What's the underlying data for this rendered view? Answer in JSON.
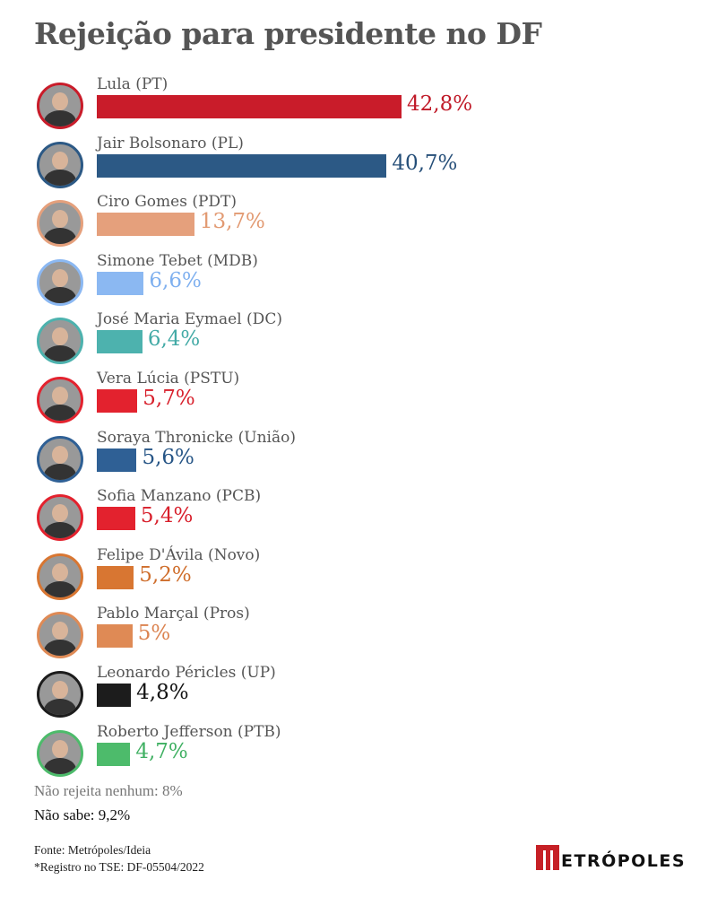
{
  "chart_data": {
    "type": "bar",
    "orientation": "horizontal",
    "title": "Rejeição para presidente no DF",
    "categories": [
      "Lula (PT)",
      "Jair Bolsonaro (PL)",
      "Ciro Gomes (PDT)",
      "Simone Tebet (MDB)",
      "José Maria Eymael (DC)",
      "Vera Lúcia (PSTU)",
      "Soraya Thronicke (União)",
      "Sofia Manzano (PCB)",
      "Felipe D'Ávila (Novo)",
      "Pablo Marçal (Pros)",
      "Leonardo Péricles (UP)",
      "Roberto Jefferson (PTB)"
    ],
    "values": [
      42.8,
      40.7,
      13.7,
      6.6,
      6.4,
      5.7,
      5.6,
      5.4,
      5.2,
      5,
      4.8,
      4.7
    ],
    "labels": [
      "42,8%",
      "40,7%",
      "13,7%",
      "6,6%",
      "6,4%",
      "5,7%",
      "5,6%",
      "5,4%",
      "5,2%",
      "5%",
      "4,8%",
      "4,7%"
    ],
    "colors": [
      "#c91c2a",
      "#2c5985",
      "#e5a07c",
      "#8bb8f2",
      "#4db2ae",
      "#e3222e",
      "#2f6095",
      "#e3222e",
      "#d87632",
      "#df8a55",
      "#1c1c1c",
      "#4dbb6b"
    ],
    "label_colors": [
      "#c01a28",
      "#254e78",
      "#e29a72",
      "#7fb0ef",
      "#43aaa6",
      "#d81f2b",
      "#265586",
      "#d81f2b",
      "#cf6e2c",
      "#db8350",
      "#111111",
      "#3fb062"
    ],
    "xlabel": "",
    "ylabel": "",
    "grid": false
  },
  "notes": {
    "none": "Não rejeita nenhum: 8%",
    "dont_know": "Não sabe: 9,2%"
  },
  "source": {
    "line1": "Fonte: Metrópoles/Ideia",
    "line2": "*Registro no TSE: DF-05504/2022"
  },
  "logo": "METRÓPOLES"
}
